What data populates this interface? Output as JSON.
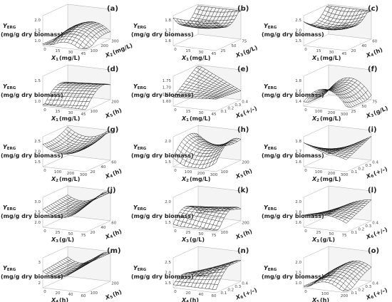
{
  "panels": [
    {
      "label": "(a)",
      "z_title": {
        "var": "Y",
        "sub": "ERG",
        "unit": "(mg/g dry biomass)"
      },
      "x_title": {
        "var": "X",
        "sub": "1",
        "unit": "(mg/L)"
      },
      "y_title": {
        "var": "X",
        "sub": "2",
        "unit": "(mg/L)"
      },
      "z_ticks": [
        "1.0",
        "1.5",
        "2.0"
      ],
      "x_ticks": [
        "0",
        "15",
        "30",
        "45"
      ],
      "y_ticks": [
        "100",
        "200",
        "300"
      ]
    },
    {
      "label": "(b)",
      "z_title": {
        "var": "Y",
        "sub": "ERG",
        "unit": "(mg/g dry biomass)"
      },
      "x_title": {
        "var": "X",
        "sub": "1",
        "unit": "(mg/L)"
      },
      "y_title": {
        "var": "X",
        "sub": "3",
        "unit": "(g/L)"
      },
      "z_ticks": [
        "1.6",
        "1.7",
        "1.8"
      ],
      "x_ticks": [
        "0",
        "15",
        "30",
        "45"
      ],
      "y_ticks": [
        "25",
        "50",
        "75"
      ]
    },
    {
      "label": "(c)",
      "z_title": {
        "var": "Y",
        "sub": "ERG",
        "unit": "(mg/g dry biomass)"
      },
      "x_title": {
        "var": "X",
        "sub": "1",
        "unit": "(mg/L)"
      },
      "y_title": {
        "var": "X",
        "sub": "4",
        "unit": "(h)"
      },
      "z_ticks": [
        "1.5",
        "2.0",
        "2.5"
      ],
      "x_ticks": [
        "0",
        "15",
        "30",
        "45"
      ],
      "y_ticks": [
        "20",
        "40",
        "60"
      ]
    },
    {
      "label": "(d)",
      "z_title": {
        "var": "Y",
        "sub": "ERG",
        "unit": "(mg/g dry biomass)"
      },
      "x_title": {
        "var": "X",
        "sub": "1",
        "unit": "(mg/L)"
      },
      "y_title": {
        "var": "X",
        "sub": "5",
        "unit": "(h)"
      },
      "z_ticks": [
        "1.0",
        "1.5"
      ],
      "x_ticks": [
        "0",
        "15",
        "30",
        "45"
      ],
      "y_ticks": [
        "100",
        "200"
      ]
    },
    {
      "label": "(e)",
      "z_title": {
        "var": "Y",
        "sub": "ERG",
        "unit": "(mg/g dry biomass)"
      },
      "x_title": {
        "var": "X",
        "sub": "1",
        "unit": "(mg/L)"
      },
      "y_title": {
        "var": "X",
        "sub": "6",
        "unit": "(+/-)"
      },
      "z_ticks": [
        "1.60",
        "1.65",
        "1.70",
        "1.75"
      ],
      "x_ticks": [
        "0",
        "15",
        "30",
        "45"
      ],
      "y_ticks": [
        "0.1",
        "0.2",
        "0.3",
        "0.4"
      ]
    },
    {
      "label": "(f)",
      "z_title": {
        "var": "Y",
        "sub": "ERG",
        "unit": "(mg/g dry biomass)"
      },
      "x_title": {
        "var": "X",
        "sub": "2",
        "unit": "(mg/L)"
      },
      "y_title": {
        "var": "X",
        "sub": "3",
        "unit": "(g/L)"
      },
      "z_ticks": [
        "1.4",
        "1.6",
        "1.8"
      ],
      "x_ticks": [
        "0",
        "100",
        "200",
        "300"
      ],
      "y_ticks": [
        "25",
        "50",
        "75"
      ]
    },
    {
      "label": "(g)",
      "z_title": {
        "var": "Y",
        "sub": "ERG",
        "unit": "(mg/g dry biomass)"
      },
      "x_title": {
        "var": "X",
        "sub": "2",
        "unit": "(mg/L)"
      },
      "y_title": {
        "var": "X",
        "sub": "4",
        "unit": "(h)"
      },
      "z_ticks": [
        "1.5",
        "2.0",
        "2.5"
      ],
      "x_ticks": [
        "0",
        "100",
        "200",
        "300"
      ],
      "y_ticks": [
        "20",
        "40",
        "60"
      ]
    },
    {
      "label": "(h)",
      "z_title": {
        "var": "Y",
        "sub": "ERG",
        "unit": "(mg/g dry biomass)"
      },
      "x_title": {
        "var": "X",
        "sub": "2",
        "unit": "(mg/L)"
      },
      "y_title": {
        "var": "X",
        "sub": "5",
        "unit": "(h)"
      },
      "z_ticks": [
        "1.5",
        "2.0"
      ],
      "x_ticks": [
        "0",
        "100",
        "200",
        "300"
      ],
      "y_ticks": [
        "100",
        "200"
      ]
    },
    {
      "label": "(i)",
      "z_title": {
        "var": "Y",
        "sub": "ERG",
        "unit": "(mg/g dry biomass)"
      },
      "x_title": {
        "var": "X",
        "sub": "2",
        "unit": "(mg/L)"
      },
      "y_title": {
        "var": "X",
        "sub": "6",
        "unit": "(+/-)"
      },
      "z_ticks": [
        "1.6",
        "1.7",
        "1.8"
      ],
      "x_ticks": [
        "0",
        "100",
        "200",
        "300"
      ],
      "y_ticks": [
        "0.1",
        "0.2",
        "0.3",
        "0.4"
      ]
    },
    {
      "label": "(j)",
      "z_title": {
        "var": "Y",
        "sub": "ERG",
        "unit": "(mg/g dry biomass)"
      },
      "x_title": {
        "var": "X",
        "sub": "3",
        "unit": "(g/L)"
      },
      "y_title": {
        "var": "X",
        "sub": "4",
        "unit": "(h)"
      },
      "z_ticks": [
        "2.0",
        "2.5",
        "3.0"
      ],
      "x_ticks": [
        "0",
        "25",
        "50",
        "75"
      ],
      "y_ticks": [
        "20",
        "40",
        "60"
      ]
    },
    {
      "label": "(k)",
      "z_title": {
        "var": "Y",
        "sub": "ERG",
        "unit": "(mg/g dry biomass)"
      },
      "x_title": {
        "var": "X",
        "sub": "3",
        "unit": "(g/L)"
      },
      "y_title": {
        "var": "X",
        "sub": "5",
        "unit": "(h)"
      },
      "z_ticks": [
        "1.5",
        "2.0"
      ],
      "x_ticks": [
        "0",
        "25",
        "50",
        "75"
      ],
      "y_ticks": [
        "100",
        "200"
      ]
    },
    {
      "label": "(l)",
      "z_title": {
        "var": "Y",
        "sub": "ERG",
        "unit": "(mg/g dry biomass)"
      },
      "x_title": {
        "var": "X",
        "sub": "3",
        "unit": "(g/L)"
      },
      "y_title": {
        "var": "X",
        "sub": "6",
        "unit": "(+/-)"
      },
      "z_ticks": [
        "1.6",
        "1.8",
        "2.0"
      ],
      "x_ticks": [
        "0",
        "25",
        "50",
        "75"
      ],
      "y_ticks": [
        "0.1",
        "0.2",
        "0.3",
        "0.4"
      ]
    },
    {
      "label": "(m)",
      "z_title": {
        "var": "Y",
        "sub": "ERG",
        "unit": "(mg/g dry biomass)"
      },
      "x_title": {
        "var": "X",
        "sub": "4",
        "unit": "(h)"
      },
      "y_title": {
        "var": "X",
        "sub": "5",
        "unit": "(h)"
      },
      "z_ticks": [
        "2",
        "3"
      ],
      "x_ticks": [
        "0",
        "20",
        "40",
        "60"
      ],
      "y_ticks": [
        "100",
        "200"
      ]
    },
    {
      "label": "(n)",
      "z_title": {
        "var": "Y",
        "sub": "ERG",
        "unit": "(mg/g dry biomass)"
      },
      "x_title": {
        "var": "X",
        "sub": "4",
        "unit": "(h)"
      },
      "y_title": {
        "var": "X",
        "sub": "6",
        "unit": "(+/-)"
      },
      "z_ticks": [
        "1.5",
        "2.0",
        "2.5"
      ],
      "x_ticks": [
        "0",
        "20",
        "40",
        "60"
      ],
      "y_ticks": [
        "0.1",
        "0.2",
        "0.3",
        "0.4"
      ]
    },
    {
      "label": "(o)",
      "z_title": {
        "var": "Y",
        "sub": "ERG",
        "unit": "(mg/g dry biomass)"
      },
      "x_title": {
        "var": "X",
        "sub": "5",
        "unit": "(h)"
      },
      "y_title": {
        "var": "X",
        "sub": "6",
        "unit": "(+/-)"
      },
      "z_ticks": [
        "1.0",
        "1.5",
        "2.0"
      ],
      "x_ticks": [
        "0",
        "100",
        "200"
      ],
      "y_ticks": [
        "0.1",
        "0.2",
        "0.3",
        "0.4"
      ]
    }
  ]
}
